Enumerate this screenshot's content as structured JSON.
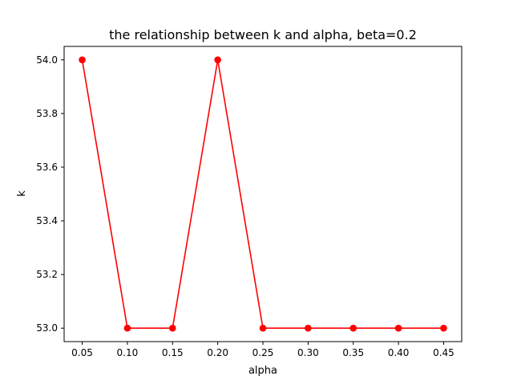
{
  "chart_data": {
    "type": "line",
    "title": "the relationship between k and alpha, beta=0.2",
    "xlabel": "alpha",
    "ylabel": "k",
    "x": [
      0.05,
      0.1,
      0.15,
      0.2,
      0.25,
      0.3,
      0.35,
      0.4,
      0.45
    ],
    "series": [
      {
        "values": [
          54.0,
          53.0,
          53.0,
          54.0,
          53.0,
          53.0,
          53.0,
          53.0,
          53.0
        ],
        "color": "#ff0000",
        "marker": "circle"
      }
    ],
    "xlim": [
      0.03,
      0.47
    ],
    "ylim": [
      52.95,
      54.05
    ],
    "xticks": [
      0.05,
      0.1,
      0.15,
      0.2,
      0.25,
      0.3,
      0.35,
      0.4,
      0.45
    ],
    "xtick_labels": [
      "0.05",
      "0.10",
      "0.15",
      "0.20",
      "0.25",
      "0.30",
      "0.35",
      "0.40",
      "0.45"
    ],
    "yticks": [
      53.0,
      53.2,
      53.4,
      53.6,
      53.8,
      54.0
    ],
    "ytick_labels": [
      "53.0",
      "53.2",
      "53.4",
      "53.6",
      "53.8",
      "54.0"
    ],
    "grid": false,
    "legend": "none"
  }
}
